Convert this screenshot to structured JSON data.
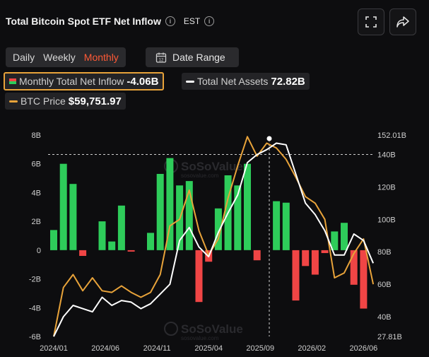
{
  "header": {
    "title": "Total Bitcoin Spot ETF Net Inflow",
    "timezone": "EST"
  },
  "tabs": [
    {
      "label": "Daily",
      "active": false
    },
    {
      "label": "Weekly",
      "active": false
    },
    {
      "label": "Monthly",
      "active": true
    }
  ],
  "date_range": {
    "label": "Date Range",
    "icon_text": "12"
  },
  "legend": {
    "inflow": {
      "label": "Monthly Total Net Inflow",
      "value": "-4.06B"
    },
    "assets": {
      "label": "Total Net Assets",
      "value": "72.82B"
    },
    "price": {
      "label": "BTC Price",
      "value": "$59,751.97"
    }
  },
  "watermark": {
    "name": "SoSoValue",
    "sub": "sosovalue.com"
  },
  "colors": {
    "positive": "#2ecc5a",
    "negative": "#f04545",
    "price_line": "#e8a33a",
    "assets_line": "#ffffff",
    "accent": "#ff5a36"
  },
  "chart_data": {
    "type": "bar",
    "x_ticks": [
      "2024/01",
      "2024/06",
      "2024/11",
      "2025/04",
      "2025/09",
      "2026/02",
      "2026/06"
    ],
    "y_left": {
      "ticks": [
        "8B",
        "6B",
        "4B",
        "2B",
        "0",
        "-2B",
        "-4B",
        "-6B"
      ],
      "range": [
        -6,
        8
      ]
    },
    "y_right": {
      "ticks": [
        "152.01B",
        "140B",
        "120B",
        "100B",
        "80B",
        "60B",
        "40B",
        "27.81B"
      ],
      "range": [
        27.81,
        152.01
      ]
    },
    "reference_line": 140,
    "series": [
      {
        "name": "Monthly Total Net Inflow",
        "values": [
          1.4,
          6.0,
          4.6,
          -0.4,
          0.0,
          2.0,
          0.6,
          3.1,
          -0.1,
          0.0,
          1.2,
          5.3,
          6.4,
          4.5,
          4.8,
          -3.6,
          -0.8,
          2.9,
          5.2,
          4.5,
          6.0,
          -0.7,
          0.0,
          3.4,
          3.3,
          -3.5,
          -1.1,
          -1.7,
          -0.2,
          1.3,
          1.9,
          -2.4,
          -4.06
        ]
      },
      {
        "name": "Total Net Assets",
        "values": [
          27.8,
          40,
          47,
          45,
          43,
          52,
          47,
          50,
          49,
          45,
          48,
          54,
          60,
          87,
          95,
          83,
          77,
          92,
          104,
          115,
          135,
          140,
          143,
          147,
          146,
          128,
          110,
          103,
          93,
          78,
          78,
          91,
          87,
          73
        ]
      },
      {
        "name": "BTC Price",
        "values": [
          27.8,
          58,
          66,
          56,
          64,
          56,
          55,
          59,
          55,
          52,
          55,
          66,
          96,
          100,
          118,
          93,
          78,
          88,
          113,
          133,
          151,
          139,
          147,
          144,
          137,
          126,
          114,
          110,
          100,
          64,
          67,
          79,
          88,
          60
        ]
      }
    ]
  }
}
